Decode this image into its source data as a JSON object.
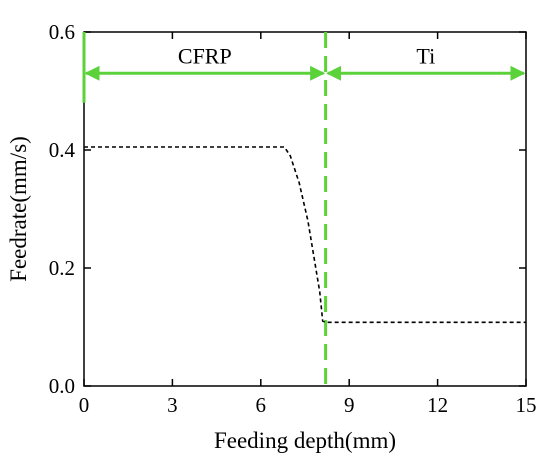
{
  "chart_data": {
    "type": "line",
    "xlabel": "Feeding depth(mm)",
    "ylabel": "Feedrate(mm/s)",
    "xlim": [
      0,
      15
    ],
    "ylim": [
      0.0,
      0.6
    ],
    "x_ticks": [
      "0",
      "3",
      "6",
      "9",
      "12",
      "15"
    ],
    "y_ticks": [
      "0.0",
      "0.2",
      "0.4",
      "0.6"
    ],
    "grid": false,
    "series": [
      {
        "line_style": "dashed",
        "color": "#000000",
        "x": [
          0,
          6.8,
          7.0,
          7.3,
          7.6,
          7.8,
          8.0,
          8.1,
          8.2,
          8.5,
          15
        ],
        "y": [
          0.405,
          0.405,
          0.39,
          0.345,
          0.28,
          0.22,
          0.16,
          0.11,
          0.108,
          0.108,
          0.108
        ]
      }
    ],
    "regions": [
      {
        "label": "CFRP",
        "x_start": 0,
        "x_end": 8.2
      },
      {
        "label": "Ti",
        "x_start": 8.2,
        "x_end": 15
      }
    ],
    "boundary": {
      "x": 8.2,
      "line_style": "dashed",
      "color": "#5bd23a"
    },
    "region_arrow_y": 0.53,
    "region_line_color": "#5bd23a"
  }
}
